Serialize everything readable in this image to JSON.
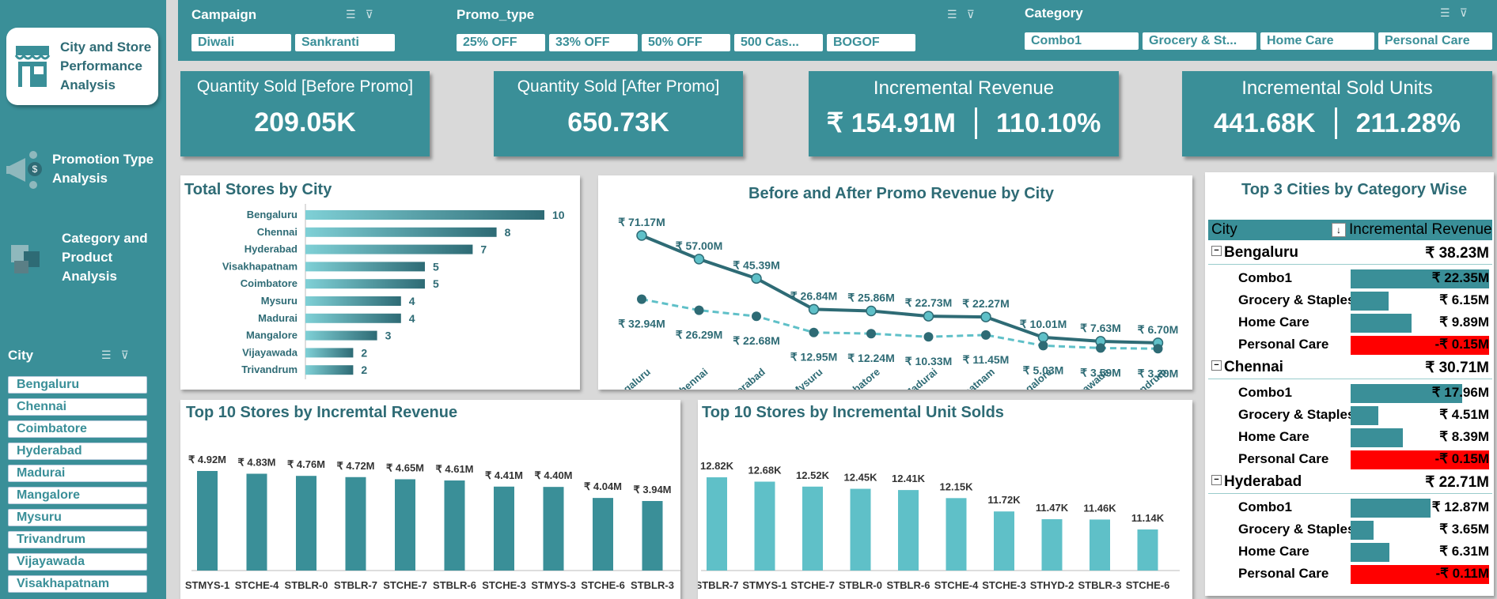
{
  "nav": {
    "main": "City and Store Performance Analysis",
    "promo": "Promotion Type Analysis",
    "category": "Category and Product Analysis"
  },
  "slicers": {
    "city_title": "City",
    "cities": [
      "Bengaluru",
      "Chennai",
      "Coimbatore",
      "Hyderabad",
      "Madurai",
      "Mangalore",
      "Mysuru",
      "Trivandrum",
      "Vijayawada",
      "Visakhapatnam"
    ],
    "campaign_title": "Campaign",
    "campaigns": [
      "Diwali",
      "Sankranti"
    ],
    "promo_title": "Promo_type",
    "promos": [
      "25% OFF",
      "33% OFF",
      "50% OFF",
      "500 Cas...",
      "BOGOF"
    ],
    "category_title": "Category",
    "categories": [
      "Combo1",
      "Grocery & St...",
      "Home Care",
      "Personal Care"
    ]
  },
  "kpis": {
    "qty_before_title": "Quantity Sold [Before Promo]",
    "qty_before": "209.05K",
    "qty_after_title": "Quantity Sold [After Promo]",
    "qty_after": "650.73K",
    "ir_title": "Incremental Revenue",
    "ir_value": "₹ 154.91M",
    "ir_pct": "110.10%",
    "isu_title": "Incremental Sold Units",
    "isu_value": "441.68K",
    "isu_pct": "211.28%"
  },
  "stores_chart": {
    "title": "Total Stores by City"
  },
  "promo_chart": {
    "title": "Before and After Promo Revenue by City"
  },
  "rev_chart": {
    "title": "Top 10 Stores by Incremtal Revenue"
  },
  "units_chart": {
    "title": "Top 10 Stores by Incremental Unit Solds"
  },
  "pivot": {
    "title": "Top 3 Cities by Category Wise",
    "col_city": "City",
    "col_rev": "Incremental Revenue",
    "groups": [
      {
        "city": "Bengaluru",
        "total": "₹ 38.23M",
        "rows": [
          {
            "cat": "Combo1",
            "label": "₹ 22.35M",
            "value": 22.35
          },
          {
            "cat": "Grocery & Staples",
            "label": "₹ 6.15M",
            "value": 6.15
          },
          {
            "cat": "Home Care",
            "label": "₹ 9.89M",
            "value": 9.89
          },
          {
            "cat": "Personal Care",
            "label": "-₹ 0.15M",
            "value": -0.15
          }
        ]
      },
      {
        "city": "Chennai",
        "total": "₹ 30.71M",
        "rows": [
          {
            "cat": "Combo1",
            "label": "₹ 17.96M",
            "value": 17.96
          },
          {
            "cat": "Grocery & Staples",
            "label": "₹ 4.51M",
            "value": 4.51
          },
          {
            "cat": "Home Care",
            "label": "₹ 8.39M",
            "value": 8.39
          },
          {
            "cat": "Personal Care",
            "label": "-₹ 0.15M",
            "value": -0.15
          }
        ]
      },
      {
        "city": "Hyderabad",
        "total": "₹ 22.71M",
        "rows": [
          {
            "cat": "Combo1",
            "label": "₹ 12.87M",
            "value": 12.87
          },
          {
            "cat": "Grocery & Staples",
            "label": "₹ 3.65M",
            "value": 3.65
          },
          {
            "cat": "Home Care",
            "label": "₹ 6.31M",
            "value": 6.31
          },
          {
            "cat": "Personal Care",
            "label": "-₹ 0.11M",
            "value": -0.11
          }
        ]
      }
    ]
  },
  "colors": {
    "teal": "#3a8f98",
    "dark_teal": "#2e6b75",
    "light_teal": "#5fc0c8",
    "negative": "#ff0000"
  },
  "chart_data": [
    {
      "type": "bar",
      "orientation": "horizontal",
      "categories": [
        "Bengaluru",
        "Chennai",
        "Hyderabad",
        "Visakhapatnam",
        "Coimbatore",
        "Mysuru",
        "Madurai",
        "Mangalore",
        "Vijayawada",
        "Trivandrum"
      ],
      "values": [
        10,
        8,
        7,
        5,
        5,
        4,
        4,
        3,
        2,
        2
      ],
      "value_labels": [
        "10",
        "8",
        "7",
        "5",
        "5",
        "4",
        "4",
        "3",
        "2",
        "2"
      ]
    },
    {
      "type": "line",
      "categories": [
        "Bengaluru",
        "Chennai",
        "Hyderabad",
        "Mysuru",
        "Coimbatore",
        "Madurai",
        "Visakhapatnam",
        "Mangalore",
        "Vijayawada",
        "Trivandrum"
      ],
      "series": [
        {
          "values": [
            71.17,
            57.0,
            45.39,
            26.84,
            25.86,
            22.73,
            22.27,
            10.01,
            7.63,
            6.7
          ],
          "labels": [
            "₹ 71.17M",
            "₹ 57.00M",
            "₹ 45.39M",
            "₹ 26.84M",
            "₹ 25.86M",
            "₹ 22.73M",
            "₹ 22.27M",
            "₹ 10.01M",
            "₹ 7.63M",
            "₹ 6.70M"
          ]
        },
        {
          "values": [
            32.94,
            26.29,
            22.68,
            12.95,
            12.24,
            10.33,
            11.45,
            5.03,
            3.59,
            3.2
          ],
          "labels": [
            "₹ 32.94M",
            "₹ 26.29M",
            "₹ 22.68M",
            "₹ 12.95M",
            "₹ 12.24M",
            "₹ 10.33M",
            "₹ 11.45M",
            "₹ 5.03M",
            "₹ 3.59M",
            "₹ 3.20M"
          ]
        }
      ]
    },
    {
      "type": "bar",
      "categories": [
        "STMYS-1",
        "STCHE-4",
        "STBLR-0",
        "STBLR-7",
        "STCHE-7",
        "STBLR-6",
        "STCHE-3",
        "STMYS-3",
        "STCHE-6",
        "STBLR-3"
      ],
      "values": [
        4.92,
        4.83,
        4.76,
        4.72,
        4.65,
        4.61,
        4.41,
        4.4,
        4.04,
        3.94
      ],
      "value_labels": [
        "₹ 4.92M",
        "₹ 4.83M",
        "₹ 4.76M",
        "₹ 4.72M",
        "₹ 4.65M",
        "₹ 4.61M",
        "₹ 4.41M",
        "₹ 4.40M",
        "₹ 4.04M",
        "₹ 3.94M"
      ]
    },
    {
      "type": "bar",
      "categories": [
        "STBLR-7",
        "STMYS-1",
        "STCHE-7",
        "STBLR-0",
        "STBLR-6",
        "STCHE-4",
        "STCHE-3",
        "STHYD-2",
        "STBLR-3",
        "STCHE-6"
      ],
      "values": [
        12.82,
        12.68,
        12.52,
        12.45,
        12.41,
        12.15,
        11.72,
        11.47,
        11.46,
        11.14
      ],
      "value_labels": [
        "12.82K",
        "12.68K",
        "12.52K",
        "12.45K",
        "12.41K",
        "12.15K",
        "11.72K",
        "11.47K",
        "11.46K",
        "11.14K"
      ]
    }
  ]
}
